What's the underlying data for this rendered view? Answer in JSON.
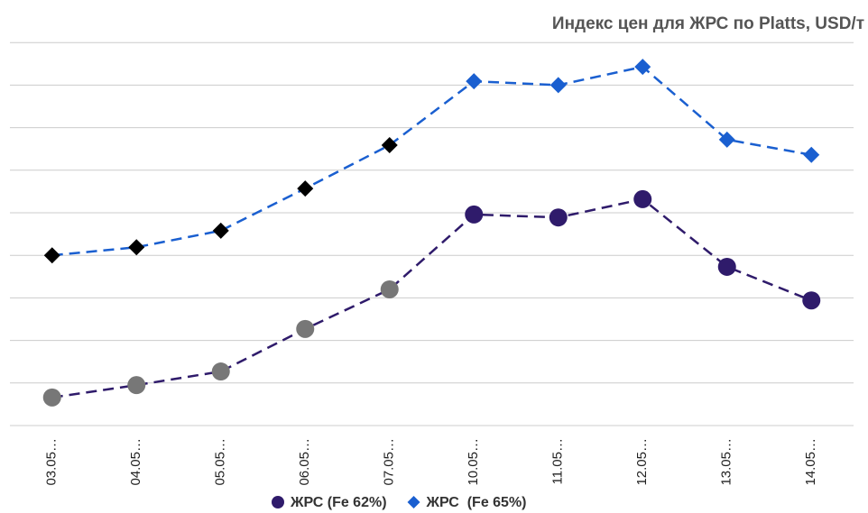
{
  "chart_data": {
    "type": "line",
    "title": "Индекс цен для ЖРС по Platts, USD/т",
    "categories": [
      "03.05…",
      "04.05…",
      "05.05…",
      "06.05…",
      "07.05…",
      "10.05…",
      "11.05…",
      "12.05…",
      "13.05…",
      "14.05…"
    ],
    "series": [
      {
        "name": "ЖРС (Fe 62%)",
        "color": "#2f1b6b",
        "marker": "circle",
        "marker_colors": [
          "#777777",
          "#777777",
          "#777777",
          "#777777",
          "#777777",
          "#2f1b6b",
          "#2f1b6b",
          "#2f1b6b",
          "#2f1b6b",
          "#2f1b6b"
        ],
        "values": [
          0.66,
          0.95,
          1.27,
          2.27,
          3.2,
          4.96,
          4.89,
          5.32,
          3.73,
          2.94
        ]
      },
      {
        "name": "ЖРС  (Fe 65%)",
        "color": "#1a5fd0",
        "marker": "diamond",
        "marker_colors": [
          "#000000",
          "#000000",
          "#000000",
          "#000000",
          "#000000",
          "#1a5fd0",
          "#1a5fd0",
          "#1a5fd0",
          "#1a5fd0",
          "#1a5fd0"
        ],
        "values": [
          4.0,
          4.19,
          4.58,
          5.57,
          6.59,
          8.09,
          8.0,
          8.43,
          6.72,
          6.36
        ]
      }
    ],
    "ylim": [
      0,
      9
    ],
    "yticks": [
      0,
      1,
      2,
      3,
      4,
      5,
      6,
      7,
      8,
      9
    ],
    "grid": true
  }
}
